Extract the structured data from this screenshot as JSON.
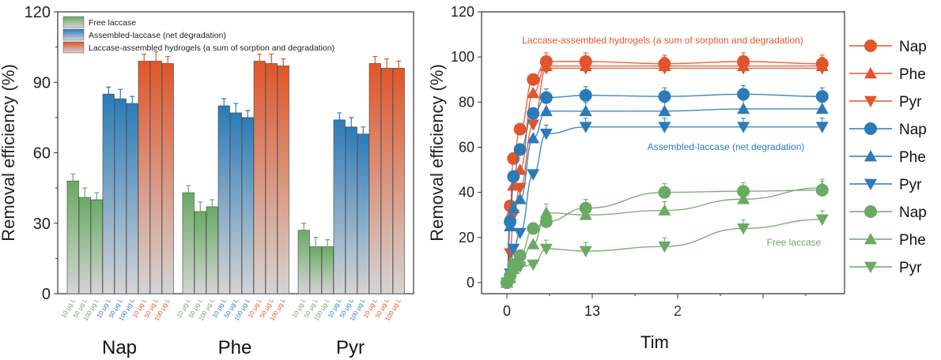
{
  "colors": {
    "free": "#6aaa64",
    "assembled": "#2b7bb9",
    "hydrogel": "#e0562a"
  },
  "chart_data": [
    {
      "type": "bar",
      "ylabel": "Removal efficiency (%)",
      "ylim": [
        0,
        120
      ],
      "yticks": [
        "0",
        "30",
        "60",
        "90",
        "120"
      ],
      "groups": [
        "Nap",
        "Phe",
        "Pyr"
      ],
      "bar_labels": [
        "10 μg L",
        "50 μg L",
        "100 μg L",
        "10 μg L",
        "50 μg L",
        "100 μg L",
        "10 μg L",
        "50 μg L",
        "100 μg L"
      ],
      "legend": [
        "Free laccase",
        "Assembled-laccase (net degradation)",
        "Laccase-assembled hydrogels (a sum of sorption and degradation)"
      ],
      "legend_position": "top-left",
      "series": [
        {
          "name": "Free laccase",
          "values": [
            [
              48,
              41,
              40
            ],
            [
              43,
              35,
              37
            ],
            [
              27,
              20,
              20
            ]
          ]
        },
        {
          "name": "Assembled-laccase (net degradation)",
          "values": [
            [
              85,
              83,
              81
            ],
            [
              80,
              77,
              75
            ],
            [
              74,
              71,
              68
            ]
          ]
        },
        {
          "name": "Laccase-assembled hydrogels (a sum of sorption and degradation)",
          "values": [
            [
              99,
              99,
              98
            ],
            [
              99,
              98,
              97
            ],
            [
              98,
              96,
              96
            ]
          ]
        }
      ]
    },
    {
      "type": "line",
      "ylabel": "Removal efficiency (%)",
      "xlabel": "Tim",
      "ylim": [
        -3,
        120
      ],
      "xlim": [
        -1.5,
        51.5
      ],
      "yticks": [
        "0",
        "20",
        "40",
        "60",
        "80",
        "100",
        "120"
      ],
      "xticks": [
        "0",
        "13",
        "2"
      ],
      "x": [
        0,
        0.5,
        1,
        2,
        4,
        6,
        12,
        24,
        36,
        48
      ],
      "annotations": [
        "Laccase-assembled hydrogels (a sum of sorption and degradation)",
        "Assembled-laccase (net degradation)",
        "Free laccase"
      ],
      "legend_position": "right",
      "series": [
        {
          "name": "Nap",
          "group": "hydrogel",
          "marker": "circle",
          "values": [
            0,
            34,
            55,
            68,
            90,
            98,
            98,
            97,
            98,
            97
          ]
        },
        {
          "name": "Phe",
          "group": "hydrogel",
          "marker": "triangle-up",
          "values": [
            0,
            30,
            43,
            50,
            84,
            96,
            96,
            96,
            96,
            96
          ]
        },
        {
          "name": "Pyr",
          "group": "hydrogel",
          "marker": "triangle-down",
          "values": [
            0,
            13,
            30,
            42,
            70,
            95,
            95,
            95,
            95,
            95
          ]
        },
        {
          "name": "Nap",
          "group": "assembled",
          "marker": "circle",
          "values": [
            0,
            27,
            47,
            59,
            75,
            82,
            83,
            82.5,
            83.5,
            82.5
          ]
        },
        {
          "name": "Phe",
          "group": "assembled",
          "marker": "triangle-up",
          "values": [
            0,
            25,
            33,
            37,
            64,
            76,
            76,
            76,
            77,
            77
          ]
        },
        {
          "name": "Pyr",
          "group": "assembled",
          "marker": "triangle-down",
          "values": [
            0,
            4,
            15,
            22,
            48,
            66,
            69,
            69,
            69,
            69
          ]
        },
        {
          "name": "Nap",
          "group": "free",
          "marker": "circle",
          "values": [
            0,
            3,
            8,
            12,
            24,
            27,
            33,
            40,
            40.5,
            41
          ]
        },
        {
          "name": "Phe",
          "group": "free",
          "marker": "triangle-up",
          "values": [
            0,
            2,
            6,
            10,
            17,
            31,
            30,
            32,
            37,
            42
          ]
        },
        {
          "name": "Pyr",
          "group": "free",
          "marker": "triangle-down",
          "values": [
            0,
            1,
            4,
            7,
            8,
            15,
            14,
            16,
            24,
            28
          ]
        }
      ]
    }
  ]
}
